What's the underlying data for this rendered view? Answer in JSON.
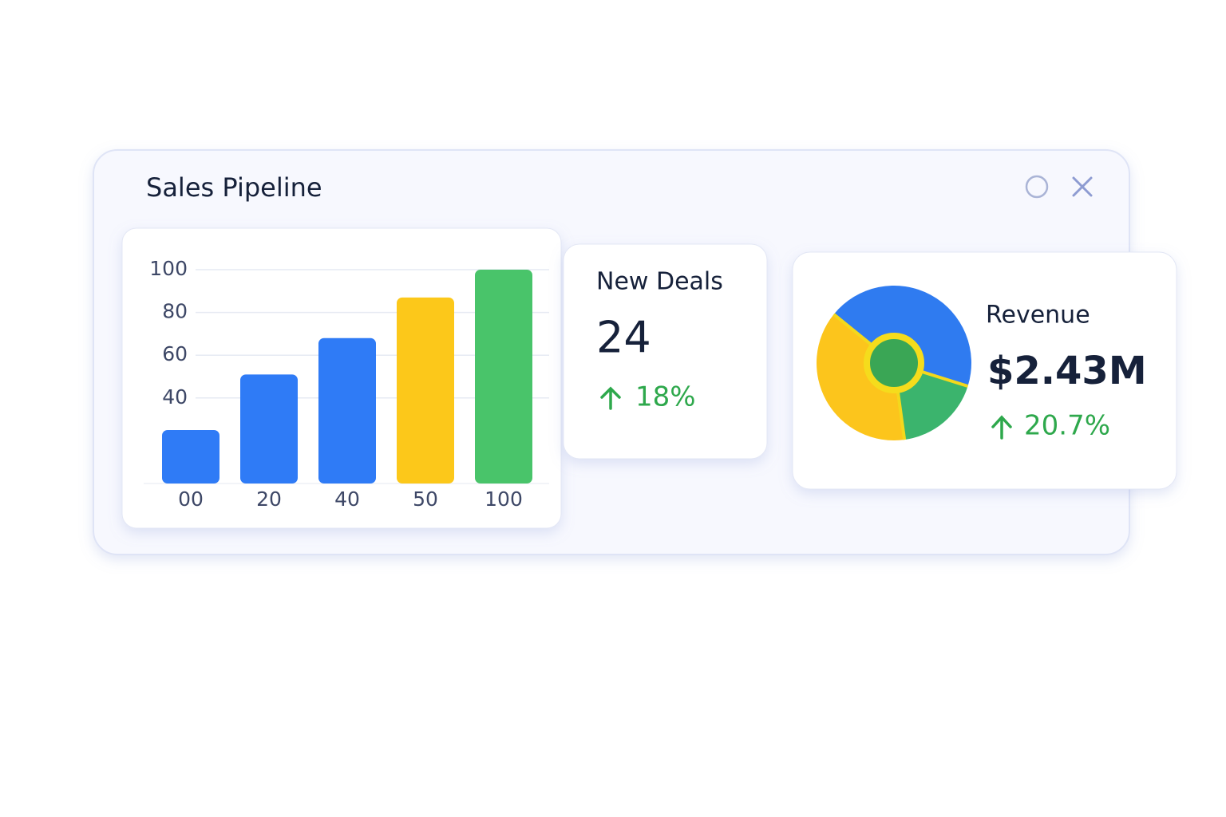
{
  "window": {
    "title": "Sales Pipeline"
  },
  "chart_data": [
    {
      "type": "bar",
      "categories": [
        "00",
        "20",
        "40",
        "50",
        "100"
      ],
      "values": [
        25,
        51,
        68,
        87,
        100
      ],
      "colors": [
        "#2f7bf6",
        "#2f7bf6",
        "#2f7bf6",
        "#fcc81a",
        "#49c46a"
      ],
      "ylim": [
        0,
        100
      ],
      "yticks": [
        40,
        60,
        80,
        100
      ],
      "grid": true
    },
    {
      "type": "pie",
      "values": [
        44,
        18,
        38
      ],
      "colors": [
        "#2f7bf0",
        "#3bb46d",
        "#fcc51c"
      ]
    }
  ],
  "cards": [
    {
      "label": "New Deals",
      "value": "24",
      "change": "18%"
    },
    {
      "label": "Revenue",
      "value": "$2.43M",
      "change": "20.7%"
    }
  ]
}
